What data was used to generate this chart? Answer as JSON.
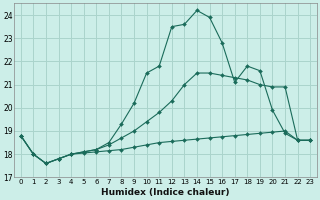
{
  "xlabel": "Humidex (Indice chaleur)",
  "bg_color": "#cceee8",
  "line_color": "#1a6b5a",
  "grid_color": "#aad4cc",
  "xlim": [
    -0.5,
    23.5
  ],
  "ylim": [
    17,
    24.5
  ],
  "yticks": [
    17,
    18,
    19,
    20,
    21,
    22,
    23,
    24
  ],
  "xticks": [
    0,
    1,
    2,
    3,
    4,
    5,
    6,
    7,
    8,
    9,
    10,
    11,
    12,
    13,
    14,
    15,
    16,
    17,
    18,
    19,
    20,
    21,
    22,
    23
  ],
  "line1_x": [
    0,
    1,
    2,
    3,
    4,
    5,
    6,
    7,
    8,
    9,
    10,
    11,
    12,
    13,
    14,
    15,
    16,
    17,
    18,
    19,
    20,
    21,
    22,
    23
  ],
  "line1_y": [
    18.8,
    18.0,
    17.6,
    17.8,
    18.0,
    18.05,
    18.1,
    18.15,
    18.2,
    18.3,
    18.4,
    18.5,
    18.55,
    18.6,
    18.65,
    18.7,
    18.75,
    18.8,
    18.85,
    18.9,
    18.95,
    19.0,
    18.6,
    18.6
  ],
  "line2_x": [
    0,
    1,
    2,
    3,
    4,
    5,
    6,
    7,
    8,
    9,
    10,
    11,
    12,
    13,
    14,
    15,
    16,
    17,
    18,
    19,
    20,
    21,
    22,
    23
  ],
  "line2_y": [
    18.8,
    18.0,
    17.6,
    17.8,
    18.0,
    18.1,
    18.2,
    18.4,
    18.7,
    19.0,
    19.4,
    19.8,
    20.3,
    21.0,
    21.5,
    21.5,
    21.4,
    21.3,
    21.2,
    21.0,
    20.9,
    20.9,
    18.6,
    18.6
  ],
  "line3_x": [
    0,
    1,
    2,
    3,
    4,
    5,
    6,
    7,
    8,
    9,
    10,
    11,
    12,
    13,
    14,
    15,
    16,
    17,
    18,
    19,
    20,
    21,
    22,
    23
  ],
  "line3_y": [
    18.8,
    18.0,
    17.6,
    17.8,
    18.0,
    18.1,
    18.2,
    18.5,
    19.3,
    20.2,
    21.5,
    21.8,
    23.5,
    23.6,
    24.2,
    23.9,
    22.8,
    21.1,
    21.8,
    21.6,
    19.9,
    18.9,
    18.6,
    18.6
  ]
}
